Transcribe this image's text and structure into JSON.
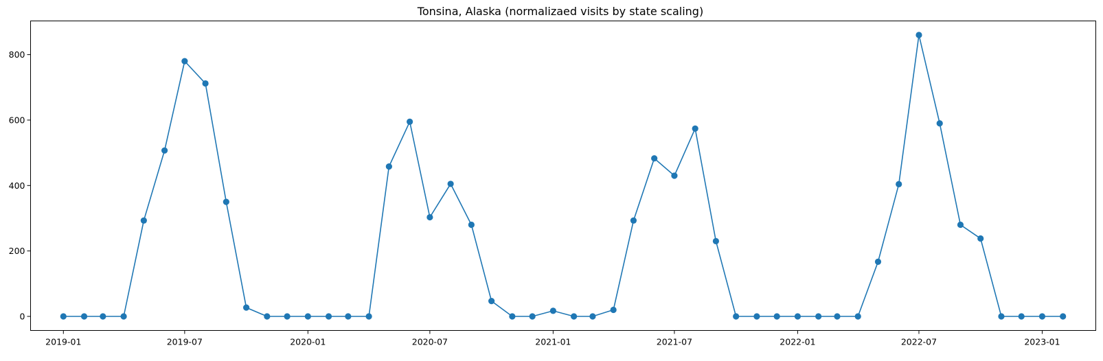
{
  "chart_data": {
    "type": "line",
    "title": "Tonsina, Alaska (normalizaed visits by state scaling)",
    "xlabel": "",
    "ylabel": "",
    "color": "#1f77b4",
    "marker": "circle",
    "grid": false,
    "x_ticks": [
      "2019-01",
      "2019-07",
      "2020-01",
      "2020-07",
      "2021-01",
      "2021-07",
      "2022-01",
      "2022-07",
      "2023-01"
    ],
    "y_ticks": [
      0,
      200,
      400,
      600,
      800
    ],
    "xlim": [
      "2018-11-13",
      "2023-03-22"
    ],
    "ylim": [
      -43,
      903
    ],
    "series": [
      {
        "x": [
          "2019-01",
          "2019-02",
          "2019-03",
          "2019-04",
          "2019-05",
          "2019-06",
          "2019-07",
          "2019-08",
          "2019-09",
          "2019-10",
          "2019-11",
          "2019-12",
          "2020-01",
          "2020-02",
          "2020-03",
          "2020-04",
          "2020-05",
          "2020-06",
          "2020-07",
          "2020-08",
          "2020-09",
          "2020-10",
          "2020-11",
          "2020-12",
          "2021-01",
          "2021-02",
          "2021-03",
          "2021-04",
          "2021-05",
          "2021-06",
          "2021-07",
          "2021-08",
          "2021-09",
          "2021-10",
          "2021-11",
          "2021-12",
          "2022-01",
          "2022-02",
          "2022-03",
          "2022-04",
          "2022-05",
          "2022-06",
          "2022-07",
          "2022-08",
          "2022-09",
          "2022-10",
          "2022-11",
          "2022-12",
          "2023-01",
          "2023-02"
        ],
        "values": [
          0,
          0,
          0,
          0,
          293,
          507,
          780,
          712,
          350,
          27,
          0,
          0,
          0,
          0,
          0,
          0,
          458,
          595,
          303,
          405,
          280,
          47,
          0,
          0,
          17,
          0,
          0,
          20,
          293,
          483,
          430,
          574,
          230,
          0,
          0,
          0,
          0,
          0,
          0,
          0,
          167,
          404,
          860,
          590,
          280,
          238,
          0,
          0,
          0,
          0
        ]
      }
    ]
  }
}
